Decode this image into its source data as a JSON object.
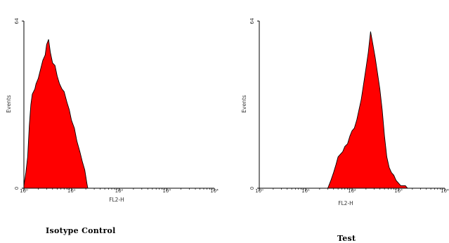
{
  "chart_data": [
    {
      "type": "area",
      "title": "",
      "caption": "Isotype Control",
      "xlabel": "FL2-H",
      "ylabel": "Events",
      "xscale": "log",
      "xlim": [
        1,
        10000
      ],
      "ylim": [
        0,
        64
      ],
      "xticks": [
        "10⁰",
        "10¹",
        "10²",
        "10³",
        "10⁴"
      ],
      "yticks": [
        "0",
        "64"
      ],
      "fill_color": "#ff0000",
      "x": [
        1.0,
        1.1,
        1.2,
        1.3,
        1.4,
        1.5,
        1.7,
        1.8,
        2.0,
        2.2,
        2.5,
        2.8,
        3.0,
        3.3,
        3.6,
        4.0,
        4.5,
        5.0,
        5.6,
        6.3,
        7.0,
        8.0,
        9.0,
        10.0,
        11.5,
        13.0,
        15.0,
        17.0,
        19.0,
        21.0,
        22.0
      ],
      "y": [
        1,
        6,
        12,
        24,
        32,
        36,
        38,
        40,
        42,
        45,
        49,
        51,
        55,
        57,
        52,
        48,
        47,
        43,
        40,
        38,
        37,
        33,
        30,
        26,
        23,
        18,
        14,
        10,
        7,
        2,
        0
      ]
    },
    {
      "type": "area",
      "title": "",
      "caption": "Test",
      "xlabel": "FL2-H",
      "ylabel": "Events",
      "xscale": "log",
      "xlim": [
        1,
        10000
      ],
      "ylim": [
        0,
        64
      ],
      "xticks": [
        "10⁰",
        "10¹",
        "10²",
        "10³",
        "10⁴"
      ],
      "yticks": [
        "0",
        "64"
      ],
      "fill_color": "#ff0000",
      "x": [
        30,
        35,
        40,
        45,
        50,
        56,
        63,
        70,
        80,
        90,
        100,
        112,
        126,
        141,
        158,
        178,
        200,
        224,
        251,
        282,
        316,
        355,
        398,
        447,
        501,
        562,
        631,
        708,
        794,
        891,
        1000,
        1120,
        1260,
        1410,
        1580
      ],
      "y": [
        0,
        3,
        6,
        9,
        12,
        13,
        14,
        16,
        17,
        20,
        22,
        23,
        26,
        30,
        34,
        40,
        46,
        52,
        60,
        55,
        50,
        44,
        38,
        30,
        20,
        12,
        8,
        6,
        5,
        3,
        2,
        1,
        1,
        1,
        0
      ]
    }
  ]
}
